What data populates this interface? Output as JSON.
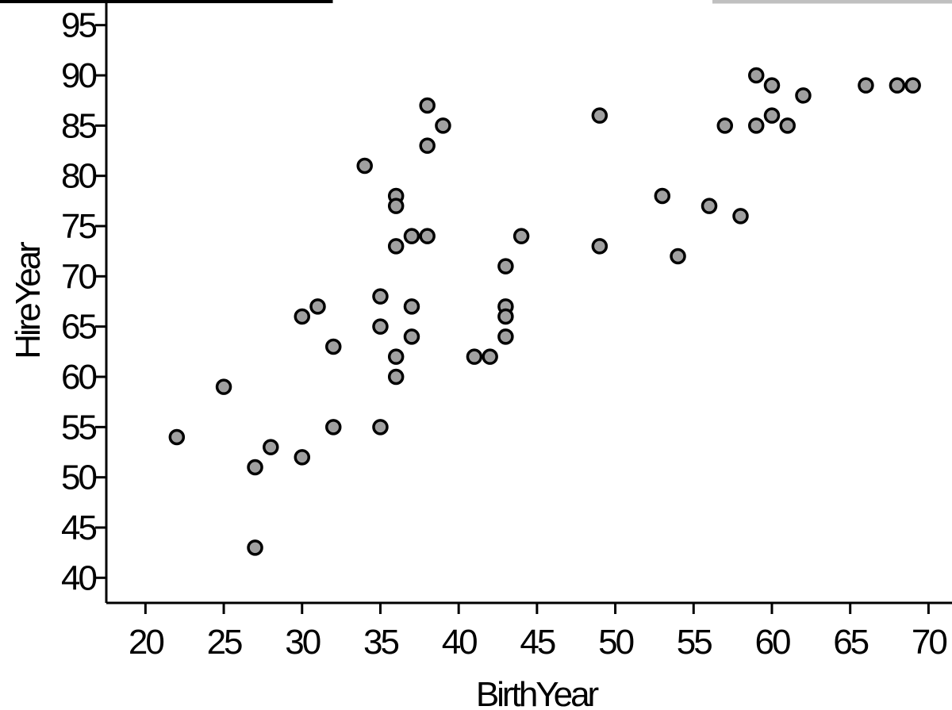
{
  "chart_data": {
    "type": "scatter",
    "xlabel": "BirthYear",
    "ylabel": "HireYear",
    "xlim": [
      17.5,
      71.5
    ],
    "ylim": [
      37.5,
      97.5
    ],
    "x_ticks": [
      "20",
      "25",
      "30",
      "35",
      "40",
      "45",
      "50",
      "55",
      "60",
      "65",
      "70"
    ],
    "y_ticks": [
      "40",
      "45",
      "50",
      "55",
      "60",
      "65",
      "70",
      "75",
      "80",
      "85",
      "90",
      "95"
    ],
    "grid": false,
    "legend": "none",
    "point_color": "#a0a0a0",
    "points": [
      {
        "x": 22,
        "y": 54
      },
      {
        "x": 25,
        "y": 59
      },
      {
        "x": 27,
        "y": 51
      },
      {
        "x": 27,
        "y": 43
      },
      {
        "x": 28,
        "y": 53
      },
      {
        "x": 30,
        "y": 66
      },
      {
        "x": 30,
        "y": 52
      },
      {
        "x": 31,
        "y": 67
      },
      {
        "x": 32,
        "y": 63
      },
      {
        "x": 32,
        "y": 55
      },
      {
        "x": 34,
        "y": 81
      },
      {
        "x": 35,
        "y": 68
      },
      {
        "x": 35,
        "y": 65
      },
      {
        "x": 35,
        "y": 55
      },
      {
        "x": 36,
        "y": 78
      },
      {
        "x": 36,
        "y": 77
      },
      {
        "x": 36,
        "y": 73
      },
      {
        "x": 36,
        "y": 62
      },
      {
        "x": 36,
        "y": 60
      },
      {
        "x": 37,
        "y": 74
      },
      {
        "x": 37,
        "y": 67
      },
      {
        "x": 37,
        "y": 64
      },
      {
        "x": 38,
        "y": 87
      },
      {
        "x": 38,
        "y": 83
      },
      {
        "x": 38,
        "y": 74
      },
      {
        "x": 39,
        "y": 85
      },
      {
        "x": 41,
        "y": 62
      },
      {
        "x": 42,
        "y": 62
      },
      {
        "x": 43,
        "y": 71
      },
      {
        "x": 43,
        "y": 67
      },
      {
        "x": 43,
        "y": 66
      },
      {
        "x": 43,
        "y": 64
      },
      {
        "x": 44,
        "y": 74
      },
      {
        "x": 49,
        "y": 86
      },
      {
        "x": 49,
        "y": 73
      },
      {
        "x": 53,
        "y": 78
      },
      {
        "x": 54,
        "y": 72
      },
      {
        "x": 56,
        "y": 77
      },
      {
        "x": 57,
        "y": 85
      },
      {
        "x": 58,
        "y": 76
      },
      {
        "x": 59,
        "y": 90
      },
      {
        "x": 59,
        "y": 85
      },
      {
        "x": 60,
        "y": 89
      },
      {
        "x": 60,
        "y": 86
      },
      {
        "x": 61,
        "y": 85
      },
      {
        "x": 62,
        "y": 88
      },
      {
        "x": 66,
        "y": 89
      },
      {
        "x": 68,
        "y": 89
      },
      {
        "x": 69,
        "y": 89
      }
    ]
  }
}
